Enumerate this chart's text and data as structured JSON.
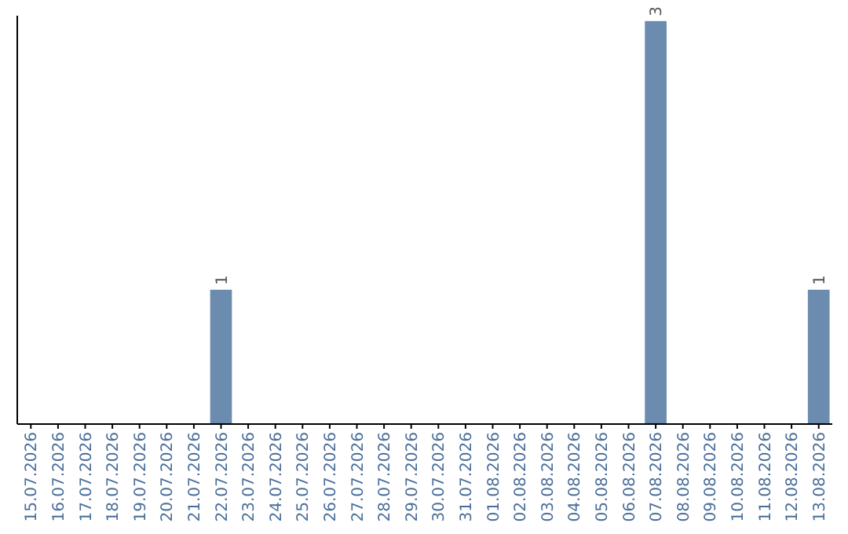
{
  "chart_data": {
    "type": "bar",
    "categories": [
      "15.07.2026",
      "16.07.2026",
      "17.07.2026",
      "18.07.2026",
      "19.07.2026",
      "20.07.2026",
      "21.07.2026",
      "22.07.2026",
      "23.07.2026",
      "24.07.2026",
      "25.07.2026",
      "26.07.2026",
      "27.07.2026",
      "28.07.2026",
      "29.07.2026",
      "30.07.2026",
      "31.07.2026",
      "01.08.2026",
      "02.08.2026",
      "03.08.2026",
      "04.08.2026",
      "05.08.2026",
      "06.08.2026",
      "07.08.2026",
      "08.08.2026",
      "09.08.2026",
      "10.08.2026",
      "11.08.2026",
      "12.08.2026",
      "13.08.2026"
    ],
    "values": [
      0,
      0,
      0,
      0,
      0,
      0,
      0,
      1,
      0,
      0,
      0,
      0,
      0,
      0,
      0,
      0,
      0,
      0,
      0,
      0,
      0,
      0,
      0,
      3,
      0,
      0,
      0,
      0,
      0,
      1
    ],
    "value_labels": [
      null,
      null,
      null,
      null,
      null,
      null,
      null,
      "1",
      null,
      null,
      null,
      null,
      null,
      null,
      null,
      null,
      null,
      null,
      null,
      null,
      null,
      null,
      null,
      "3",
      null,
      null,
      null,
      null,
      null,
      "1"
    ],
    "color": "#6b8cae",
    "ylim": [
      0,
      3.04
    ],
    "tick_labels": "x"
  }
}
